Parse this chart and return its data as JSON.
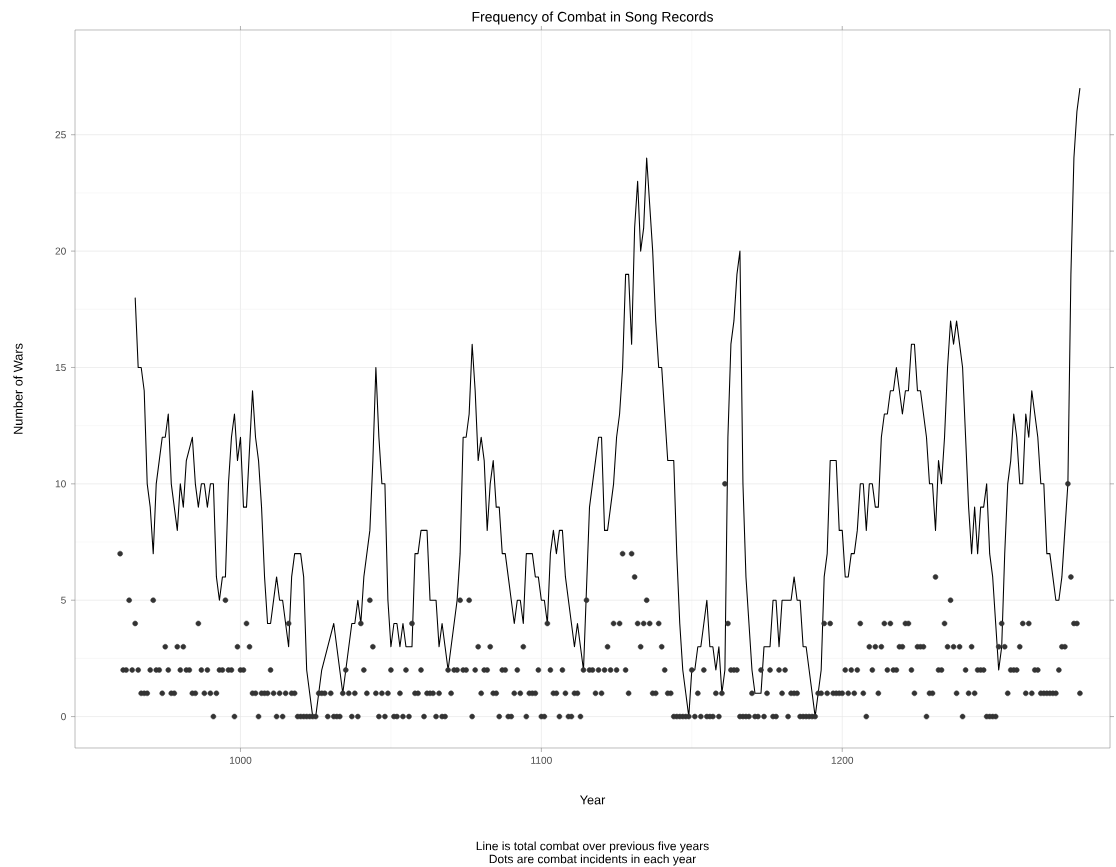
{
  "chart_data": {
    "type": "line",
    "title": "Frequency of Combat in Song Records",
    "xlabel": "Year",
    "ylabel": "Number of Wars",
    "annotations": [
      "Line is total combat over previous five years",
      "Dots are combat incidents in each year"
    ],
    "xlim": [
      945,
      1289
    ],
    "ylim": [
      -1.35,
      29.5
    ],
    "xticks": [
      1000,
      1100,
      1200
    ],
    "yticks": [
      0,
      5,
      10,
      15,
      20,
      25
    ],
    "grid": true,
    "series": [
      {
        "color": "#000000",
        "marker": "none",
        "line_style": "solid",
        "x": [
          965,
          966,
          967,
          968,
          969,
          970,
          971,
          972,
          973,
          974,
          975,
          976,
          977,
          978,
          979,
          980,
          981,
          982,
          984,
          985,
          986,
          987,
          988,
          989,
          990,
          991,
          992,
          993,
          994,
          995,
          996,
          997,
          998,
          999,
          1000,
          1001,
          1002,
          1004,
          1005,
          1006,
          1007,
          1008,
          1009,
          1010,
          1012,
          1013,
          1014,
          1016,
          1017,
          1018,
          1020,
          1021,
          1022,
          1023,
          1024,
          1025,
          1026,
          1027,
          1029,
          1031,
          1034,
          1035,
          1036,
          1037,
          1038,
          1039,
          1040,
          1041,
          1043,
          1044,
          1045,
          1046,
          1047,
          1048,
          1049,
          1050,
          1051,
          1052,
          1053,
          1054,
          1055,
          1056,
          1057,
          1058,
          1059,
          1060,
          1061,
          1062,
          1063,
          1064,
          1065,
          1066,
          1067,
          1068,
          1069,
          1070,
          1071,
          1072,
          1073,
          1074,
          1075,
          1076,
          1077,
          1078,
          1079,
          1080,
          1081,
          1082,
          1083,
          1084,
          1085,
          1086,
          1087,
          1088,
          1089,
          1090,
          1091,
          1092,
          1093,
          1094,
          1095,
          1096,
          1097,
          1098,
          1099,
          1100,
          1101,
          1102,
          1103,
          1104,
          1105,
          1106,
          1107,
          1108,
          1109,
          1110,
          1111,
          1112,
          1113,
          1114,
          1116,
          1117,
          1118,
          1119,
          1120,
          1121,
          1122,
          1123,
          1124,
          1125,
          1126,
          1127,
          1128,
          1129,
          1130,
          1131,
          1132,
          1133,
          1134,
          1135,
          1136,
          1137,
          1138,
          1139,
          1140,
          1141,
          1142,
          1143,
          1144,
          1145,
          1146,
          1147,
          1148,
          1149,
          1150,
          1151,
          1152,
          1153,
          1155,
          1156,
          1157,
          1158,
          1159,
          1160,
          1161,
          1162,
          1163,
          1164,
          1165,
          1166,
          1167,
          1168,
          1170,
          1171,
          1172,
          1173,
          1174,
          1175,
          1176,
          1177,
          1178,
          1179,
          1180,
          1181,
          1182,
          1183,
          1184,
          1185,
          1186,
          1187,
          1188,
          1189,
          1190,
          1191,
          1192,
          1193,
          1194,
          1195,
          1196,
          1197,
          1198,
          1199,
          1200,
          1201,
          1202,
          1203,
          1204,
          1205,
          1206,
          1207,
          1208,
          1209,
          1210,
          1211,
          1212,
          1213,
          1214,
          1215,
          1216,
          1217,
          1218,
          1219,
          1220,
          1221,
          1222,
          1223,
          1224,
          1225,
          1226,
          1227,
          1228,
          1229,
          1230,
          1231,
          1232,
          1233,
          1234,
          1235,
          1236,
          1237,
          1238,
          1239,
          1240,
          1241,
          1242,
          1243,
          1244,
          1245,
          1246,
          1247,
          1248,
          1249,
          1250,
          1251,
          1252,
          1253,
          1254,
          1255,
          1256,
          1257,
          1258,
          1259,
          1260,
          1261,
          1262,
          1263,
          1264,
          1265,
          1266,
          1267,
          1268,
          1269,
          1270,
          1271,
          1272,
          1273,
          1274,
          1275,
          1276,
          1277,
          1278,
          1279
        ],
        "values": [
          18,
          15,
          15,
          14,
          10,
          9,
          7,
          10,
          11,
          12,
          12,
          13,
          10,
          9,
          8,
          10,
          9,
          11,
          12,
          10,
          9,
          10,
          10,
          9,
          10,
          10,
          6,
          5,
          6,
          6,
          10,
          12,
          13,
          11,
          12,
          9,
          9,
          14,
          12,
          11,
          9,
          6,
          4,
          4,
          6,
          5,
          5,
          3,
          6,
          7,
          7,
          6,
          2,
          1,
          0,
          0,
          1,
          2,
          3,
          4,
          1,
          2,
          3,
          4,
          4,
          5,
          4,
          6,
          8,
          11,
          15,
          12,
          10,
          10,
          5,
          3,
          4,
          4,
          3,
          4,
          3,
          3,
          3,
          7,
          7,
          8,
          8,
          8,
          5,
          5,
          5,
          3,
          4,
          3,
          2,
          3,
          4,
          5,
          7,
          12,
          12,
          13,
          16,
          14,
          11,
          12,
          11,
          8,
          10,
          11,
          9,
          9,
          7,
          7,
          6,
          5,
          4,
          5,
          5,
          4,
          7,
          7,
          7,
          6,
          6,
          5,
          5,
          4,
          7,
          8,
          7,
          8,
          8,
          6,
          5,
          4,
          3,
          4,
          3,
          2,
          9,
          10,
          11,
          12,
          12,
          8,
          8,
          9,
          10,
          12,
          13,
          15,
          19,
          19,
          16,
          21,
          23,
          20,
          21,
          24,
          22,
          20,
          17,
          15,
          15,
          13,
          11,
          11,
          11,
          7,
          4,
          2,
          1,
          0,
          2,
          2,
          3,
          3,
          5,
          3,
          3,
          2,
          3,
          1,
          2,
          12,
          16,
          17,
          19,
          20,
          10,
          6,
          2,
          1,
          1,
          1,
          3,
          3,
          3,
          5,
          5,
          3,
          5,
          5,
          5,
          5,
          6,
          5,
          5,
          3,
          3,
          2,
          1,
          0,
          1,
          2,
          6,
          7,
          11,
          11,
          11,
          8,
          8,
          6,
          6,
          7,
          7,
          8,
          10,
          10,
          8,
          10,
          10,
          9,
          9,
          12,
          13,
          13,
          14,
          14,
          15,
          14,
          13,
          14,
          14,
          16,
          16,
          14,
          14,
          13,
          12,
          10,
          10,
          8,
          11,
          10,
          12,
          15,
          17,
          16,
          17,
          16,
          15,
          12,
          9,
          7,
          9,
          7,
          9,
          9,
          10,
          7,
          6,
          4,
          2,
          3,
          7,
          10,
          11,
          13,
          12,
          10,
          10,
          13,
          12,
          14,
          13,
          12,
          10,
          10,
          7,
          7,
          6,
          5,
          5,
          6,
          8,
          10,
          19,
          24,
          26,
          27
        ]
      },
      {
        "type": "scatter",
        "color": "#333333",
        "marker": "circle",
        "x": [
          960,
          961,
          962,
          963,
          964,
          965,
          966,
          967,
          968,
          969,
          970,
          971,
          972,
          973,
          974,
          975,
          976,
          977,
          978,
          979,
          980,
          981,
          982,
          983,
          984,
          985,
          986,
          987,
          988,
          989,
          990,
          991,
          992,
          993,
          994,
          995,
          996,
          997,
          998,
          999,
          1000,
          1001,
          1002,
          1003,
          1004,
          1005,
          1006,
          1007,
          1008,
          1009,
          1010,
          1011,
          1012,
          1013,
          1014,
          1015,
          1016,
          1017,
          1018,
          1019,
          1020,
          1021,
          1022,
          1023,
          1024,
          1025,
          1026,
          1027,
          1028,
          1029,
          1030,
          1031,
          1032,
          1033,
          1034,
          1035,
          1036,
          1037,
          1038,
          1039,
          1040,
          1041,
          1042,
          1043,
          1044,
          1045,
          1046,
          1047,
          1048,
          1049,
          1050,
          1051,
          1052,
          1053,
          1054,
          1055,
          1056,
          1057,
          1058,
          1059,
          1060,
          1061,
          1062,
          1063,
          1064,
          1065,
          1066,
          1067,
          1068,
          1069,
          1070,
          1071,
          1072,
          1073,
          1074,
          1075,
          1076,
          1077,
          1078,
          1079,
          1080,
          1081,
          1082,
          1083,
          1084,
          1085,
          1086,
          1087,
          1088,
          1089,
          1090,
          1091,
          1092,
          1093,
          1094,
          1095,
          1096,
          1097,
          1098,
          1099,
          1100,
          1101,
          1102,
          1103,
          1104,
          1105,
          1106,
          1107,
          1108,
          1109,
          1110,
          1111,
          1112,
          1113,
          1114,
          1115,
          1116,
          1117,
          1118,
          1119,
          1120,
          1121,
          1122,
          1123,
          1124,
          1125,
          1126,
          1127,
          1128,
          1129,
          1130,
          1131,
          1132,
          1133,
          1134,
          1135,
          1136,
          1137,
          1138,
          1139,
          1140,
          1141,
          1142,
          1143,
          1144,
          1145,
          1146,
          1147,
          1148,
          1149,
          1150,
          1151,
          1152,
          1153,
          1154,
          1155,
          1156,
          1157,
          1158,
          1159,
          1160,
          1161,
          1162,
          1163,
          1164,
          1165,
          1166,
          1167,
          1168,
          1169,
          1170,
          1171,
          1172,
          1173,
          1174,
          1175,
          1176,
          1177,
          1178,
          1179,
          1180,
          1181,
          1182,
          1183,
          1184,
          1185,
          1186,
          1187,
          1188,
          1189,
          1190,
          1191,
          1192,
          1193,
          1194,
          1195,
          1196,
          1197,
          1198,
          1199,
          1200,
          1201,
          1202,
          1203,
          1204,
          1205,
          1206,
          1207,
          1208,
          1209,
          1210,
          1211,
          1212,
          1213,
          1214,
          1215,
          1216,
          1217,
          1218,
          1219,
          1220,
          1221,
          1222,
          1223,
          1224,
          1225,
          1226,
          1227,
          1228,
          1229,
          1230,
          1231,
          1232,
          1233,
          1234,
          1235,
          1236,
          1237,
          1238,
          1239,
          1240,
          1241,
          1242,
          1243,
          1244,
          1245,
          1246,
          1247,
          1248,
          1249,
          1250,
          1251,
          1252,
          1253,
          1254,
          1255,
          1256,
          1257,
          1258,
          1259,
          1260,
          1261,
          1262,
          1263,
          1264,
          1265,
          1266,
          1267,
          1268,
          1269,
          1270,
          1271,
          1272,
          1273,
          1274,
          1275,
          1276,
          1277,
          1278,
          1279
        ],
        "values": [
          7,
          2,
          2,
          5,
          2,
          4,
          2,
          1,
          1,
          1,
          2,
          5,
          2,
          2,
          1,
          3,
          2,
          1,
          1,
          3,
          2,
          3,
          2,
          2,
          1,
          1,
          4,
          2,
          1,
          2,
          1,
          0,
          1,
          2,
          2,
          5,
          2,
          2,
          0,
          3,
          2,
          2,
          4,
          3,
          1,
          1,
          0,
          1,
          1,
          1,
          2,
          1,
          0,
          1,
          0,
          1,
          4,
          1,
          1,
          0,
          0,
          0,
          0,
          0,
          0,
          0,
          1,
          1,
          1,
          0,
          1,
          0,
          0,
          0,
          1,
          2,
          1,
          0,
          1,
          0,
          4,
          2,
          1,
          5,
          3,
          1,
          0,
          1,
          0,
          1,
          2,
          0,
          0,
          1,
          0,
          2,
          0,
          4,
          1,
          1,
          2,
          0,
          1,
          1,
          1,
          0,
          1,
          0,
          0,
          2,
          1,
          2,
          2,
          5,
          2,
          2,
          5,
          0,
          2,
          3,
          1,
          2,
          2,
          3,
          1,
          1,
          0,
          2,
          2,
          0,
          0,
          1,
          2,
          1,
          3,
          0,
          1,
          1,
          1,
          2,
          0,
          0,
          4,
          2,
          1,
          1,
          0,
          2,
          1,
          0,
          0,
          1,
          1,
          0,
          2,
          5,
          2,
          2,
          1,
          2,
          1,
          2,
          3,
          2,
          4,
          2,
          4,
          7,
          2,
          1,
          7,
          6,
          4,
          3,
          4,
          5,
          4,
          1,
          1,
          4,
          3,
          2,
          1,
          1,
          0,
          0,
          0,
          0,
          0,
          0,
          2,
          0,
          1,
          0,
          2,
          0,
          0,
          0,
          1,
          0,
          1,
          10,
          4,
          2,
          2,
          2,
          0,
          0,
          0,
          0,
          1,
          0,
          0,
          2,
          0,
          1,
          2,
          0,
          0,
          2,
          1,
          2,
          0,
          1,
          1,
          1,
          0,
          0,
          0,
          0,
          0,
          0,
          1,
          1,
          4,
          1,
          4,
          1,
          1,
          1,
          1,
          2,
          1,
          2,
          1,
          2,
          4,
          1,
          0,
          3,
          2,
          3,
          1,
          3,
          4,
          2,
          4,
          2,
          2,
          3,
          3,
          4,
          4,
          2,
          1,
          3,
          3,
          3,
          0,
          1,
          1,
          6,
          2,
          2,
          4,
          3,
          5,
          3,
          1,
          3,
          0,
          2,
          1,
          3,
          1,
          2,
          2,
          2,
          0,
          0,
          0,
          0,
          3,
          4,
          3,
          1,
          2,
          2,
          2,
          3,
          4,
          1,
          4,
          1,
          2,
          2,
          1,
          1,
          1,
          1,
          1,
          1,
          2,
          3,
          3,
          10,
          6,
          4,
          4,
          1
        ]
      }
    ]
  }
}
